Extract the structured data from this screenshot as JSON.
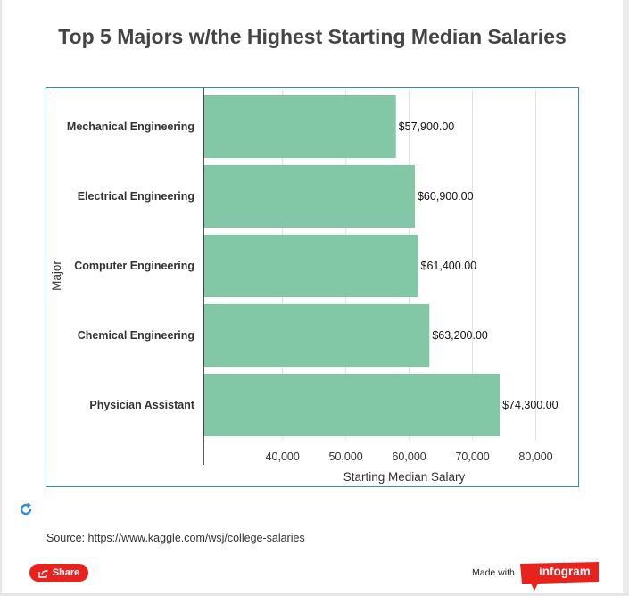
{
  "colors": {
    "bar": "#82c8a7",
    "grid": "#e0e0e0",
    "axis": "#222222",
    "text": "#333333",
    "title": "#444444",
    "accent": "#e8231e",
    "border": "#2e8fb8"
  },
  "chart_data": {
    "type": "bar",
    "orientation": "horizontal",
    "title": "Top 5 Majors w/the Highest Starting Median Salaries",
    "xlabel": "Starting Median Salary",
    "ylabel": "Major",
    "xlim": [
      27500,
      85000
    ],
    "xticks": [
      40000,
      50000,
      60000,
      70000,
      80000
    ],
    "xtick_labels": [
      "40,000",
      "50,000",
      "60,000",
      "70,000",
      "80,000"
    ],
    "grid": true,
    "categories": [
      "Mechanical Engineering",
      "Electrical Engineering",
      "Computer Engineering",
      "Chemical Engineering",
      "Physician Assistant"
    ],
    "values": [
      57900,
      60900,
      61400,
      63200,
      74300
    ],
    "value_labels": [
      "$57,900.00",
      "$60,900.00",
      "$61,400.00",
      "$63,200.00",
      "$74,300.00"
    ]
  },
  "footer": {
    "source": "Source: https://www.kaggle.com/wsj/college-salaries",
    "share_label": "Share",
    "made_with": "Made with",
    "brand": "infogram"
  },
  "icons": {
    "refresh": "refresh-icon",
    "share": "share-icon"
  }
}
